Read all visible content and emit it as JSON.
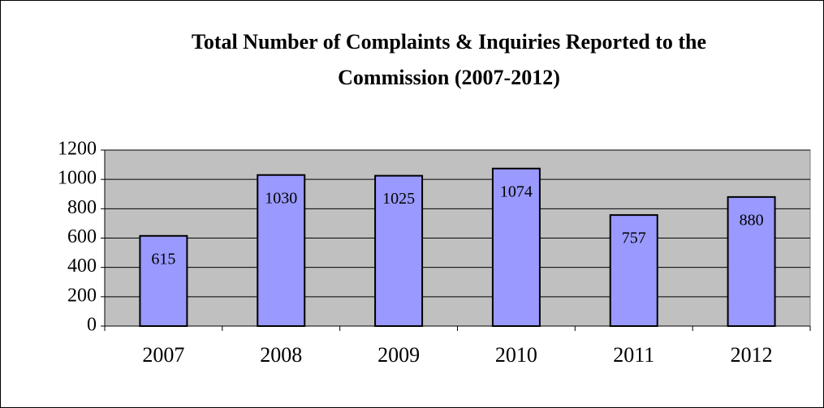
{
  "chart_data": {
    "type": "bar",
    "title": "Total Number of Complaints & Inquiries Reported to the Commission (2007-2012)",
    "categories": [
      "2007",
      "2008",
      "2009",
      "2010",
      "2011",
      "2012"
    ],
    "values": [
      615,
      1030,
      1025,
      1074,
      757,
      880
    ],
    "color": "#9999ff",
    "ylim": [
      0,
      1200
    ],
    "yticks": [
      0,
      200,
      400,
      600,
      800,
      1000,
      1200
    ],
    "grid": true
  }
}
